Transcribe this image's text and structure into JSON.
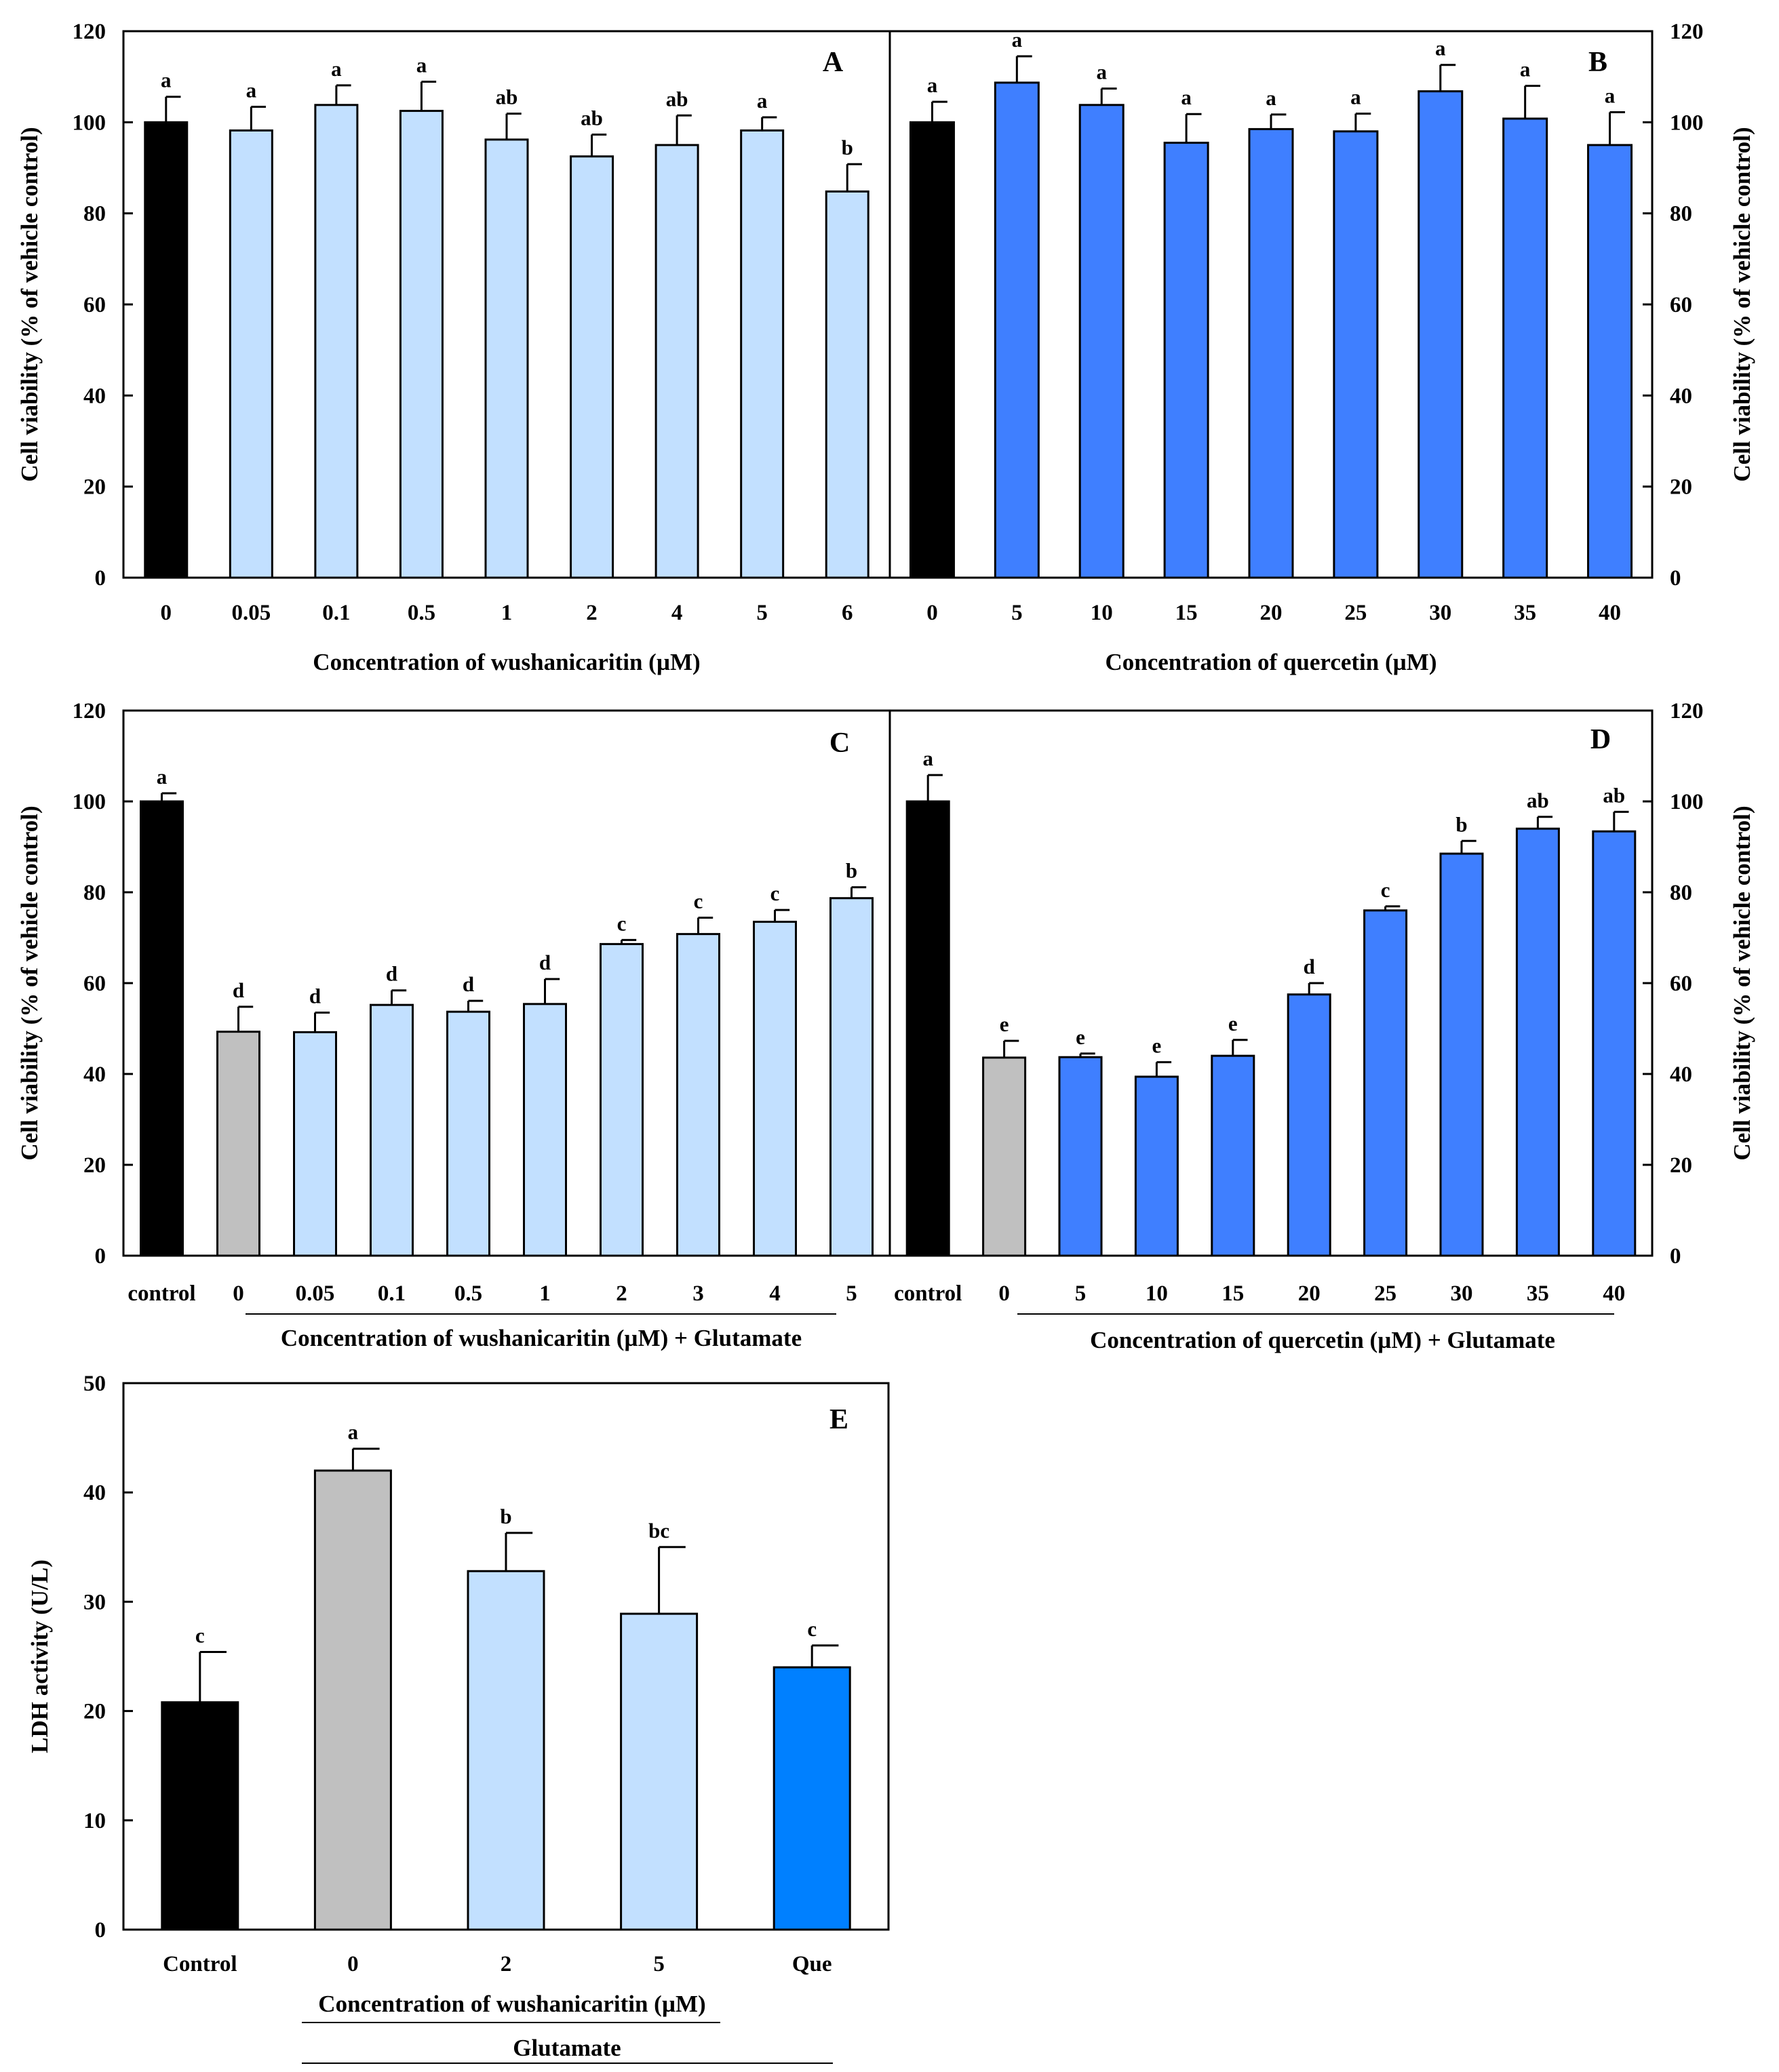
{
  "colors": {
    "black": "#000000",
    "gray": "#c0c0c0",
    "light_blue": "#c2e0ff",
    "blue": "#3f7fff",
    "bright_blue": "#0080ff"
  },
  "chart_data": [
    {
      "id": "A",
      "type": "bar",
      "panel_label": "A",
      "xlabel": "Concentration of wushanicaritin (µM)",
      "ylabel": "Cell viability (% of vehicle control)",
      "ylabel_side": "left",
      "ylim": [
        0,
        120
      ],
      "yticks": [
        0,
        20,
        40,
        60,
        80,
        100,
        120
      ],
      "categories": [
        "0",
        "0.05",
        "0.1",
        "0.5",
        "1",
        "2",
        "4",
        "5",
        "6"
      ],
      "values": [
        100,
        98.2,
        103.8,
        102.5,
        96.2,
        92.5,
        95,
        98.2,
        84.8
      ],
      "errors": [
        5.6,
        5.2,
        4.3,
        6.4,
        5.7,
        4.8,
        6.5,
        2.9,
        6
      ],
      "significance": [
        "a",
        "a",
        "a",
        "a",
        "ab",
        "ab",
        "ab",
        "a",
        "b"
      ],
      "bar_colors": [
        "black",
        "light_blue",
        "light_blue",
        "light_blue",
        "light_blue",
        "light_blue",
        "light_blue",
        "light_blue",
        "light_blue"
      ]
    },
    {
      "id": "B",
      "type": "bar",
      "panel_label": "B",
      "xlabel": "Concentration of quercetin (µM)",
      "ylabel": "Cell viability (% of vehicle control)",
      "ylabel_side": "right",
      "ylim": [
        0,
        120
      ],
      "yticks": [
        0,
        20,
        40,
        60,
        80,
        100,
        120
      ],
      "categories": [
        "0",
        "5",
        "10",
        "15",
        "20",
        "25",
        "30",
        "35",
        "40"
      ],
      "values": [
        100,
        108.7,
        103.8,
        95.5,
        98.5,
        98,
        106.8,
        100.8,
        95
      ],
      "errors": [
        4.5,
        5.8,
        3.6,
        6.3,
        3.2,
        3.9,
        5.8,
        7.2,
        7.2
      ],
      "significance": [
        "a",
        "a",
        "a",
        "a",
        "a",
        "a",
        "a",
        "a",
        "a"
      ],
      "bar_colors": [
        "black",
        "blue",
        "blue",
        "blue",
        "blue",
        "blue",
        "blue",
        "blue",
        "blue"
      ]
    },
    {
      "id": "C",
      "type": "bar",
      "panel_label": "C",
      "xlabel": "Concentration of wushanicaritin (µM) + Glutamate",
      "ylabel": "Cell viability (% of vehicle control)",
      "ylabel_side": "left",
      "ylim": [
        0,
        120
      ],
      "yticks": [
        0,
        20,
        40,
        60,
        80,
        100,
        120
      ],
      "categories": [
        "control",
        "0",
        "0.05",
        "0.1",
        "0.5",
        "1",
        "2",
        "3",
        "4",
        "5"
      ],
      "values": [
        100,
        49.3,
        49.2,
        55.2,
        53.7,
        55.4,
        68.6,
        70.8,
        73.5,
        78.7
      ],
      "errors": [
        1.8,
        5.5,
        4.3,
        3.2,
        2.4,
        5.5,
        0.9,
        3.6,
        2.6,
        2.4
      ],
      "significance": [
        "a",
        "d",
        "d",
        "d",
        "d",
        "d",
        "c",
        "c",
        "c",
        "b"
      ],
      "bar_colors": [
        "black",
        "gray",
        "light_blue",
        "light_blue",
        "light_blue",
        "light_blue",
        "light_blue",
        "light_blue",
        "light_blue",
        "light_blue"
      ]
    },
    {
      "id": "D",
      "type": "bar",
      "panel_label": "D",
      "xlabel": "Concentration of quercetin (µM) + Glutamate",
      "ylabel": "Cell viability (% of vehicle control)",
      "ylabel_side": "right",
      "ylim": [
        0,
        120
      ],
      "yticks": [
        0,
        20,
        40,
        60,
        80,
        100,
        120
      ],
      "categories": [
        "control",
        "0",
        "5",
        "10",
        "15",
        "20",
        "25",
        "30",
        "35",
        "40"
      ],
      "values": [
        100,
        43.6,
        43.7,
        39.4,
        44,
        57.5,
        76,
        88.5,
        94,
        93.4
      ],
      "errors": [
        5.8,
        3.7,
        0.8,
        3.2,
        3.5,
        2.5,
        0.9,
        2.8,
        2.6,
        4.3
      ],
      "significance": [
        "a",
        "e",
        "e",
        "e",
        "e",
        "d",
        "c",
        "b",
        "ab",
        "ab"
      ],
      "bar_colors": [
        "black",
        "gray",
        "blue",
        "blue",
        "blue",
        "blue",
        "blue",
        "blue",
        "blue",
        "blue"
      ]
    },
    {
      "id": "E",
      "type": "bar",
      "panel_label": "E",
      "xlabel": "Concentration of wushanicaritin (µM)",
      "xlabel2": "Glutamate",
      "ylabel": "LDH activity (U/L)",
      "ylabel_side": "left",
      "ylim": [
        0,
        50
      ],
      "yticks": [
        0,
        10,
        20,
        30,
        40,
        50
      ],
      "categories": [
        "Control",
        "0",
        "2",
        "5",
        "Que"
      ],
      "values": [
        20.8,
        42,
        32.8,
        28.9,
        24
      ],
      "errors": [
        4.6,
        2,
        3.5,
        6.1,
        2
      ],
      "significance": [
        "c",
        "a",
        "b",
        "bc",
        "c"
      ],
      "bar_colors": [
        "black",
        "gray",
        "light_blue",
        "light_blue",
        "bright_blue"
      ]
    }
  ]
}
